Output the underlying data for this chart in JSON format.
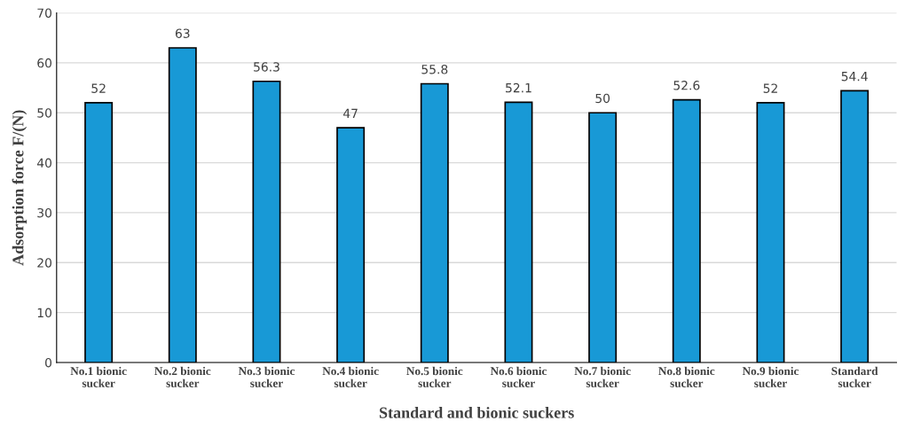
{
  "chart_data": {
    "type": "bar",
    "xlabel": "Standard and bionic suckers",
    "ylabel": "Adsorption force F/(N)",
    "categories": [
      "No.1 bionic\nsucker",
      "No.2 bionic\nsucker",
      "No.3 bionic\nsucker",
      "No.4 bionic\nsucker",
      "No.5 bionic\nsucker",
      "No.6 bionic\nsucker",
      "No.7 bionic\nsucker",
      "No.8 bionic\nsucker",
      "No.9 bionic\nsucker",
      "Standard\nsucker"
    ],
    "values": [
      52,
      63,
      56.3,
      47,
      55.8,
      52.1,
      50,
      52.6,
      52,
      54.4
    ],
    "color": "#1899d6",
    "ylim": [
      0,
      70
    ],
    "yticks": [
      0,
      10,
      20,
      30,
      40,
      50,
      60,
      70
    ],
    "grid": "y",
    "data_labels": true,
    "legend": false
  }
}
